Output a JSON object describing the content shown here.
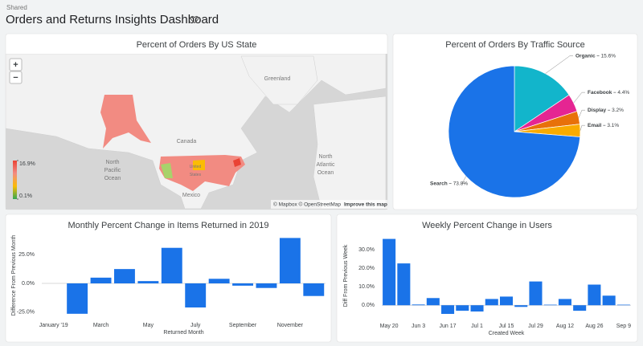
{
  "header": {
    "label": "Shared",
    "title": "Orders and Returns Insights Dashboard"
  },
  "chart_data": [
    {
      "type": "map",
      "title": "Percent of Orders By US State",
      "controls": [
        "+",
        "−"
      ],
      "map_labels": [
        "Greenland",
        "Canada",
        "North Pacific Ocean",
        "North Atlantic Ocean",
        "Mexico",
        "United States"
      ],
      "colorbar_ticks": [
        {
          "value": 16.9,
          "label": "16.9%"
        },
        {
          "value": 0.1,
          "label": "0.1%"
        }
      ],
      "colors": [
        "#34a853",
        "#fbbc04",
        "#f28b82",
        "#ea4335"
      ],
      "attribution": [
        "© Mapbox © OpenStreetMap",
        "Improve this map"
      ]
    },
    {
      "type": "pie",
      "title": "Percent of Orders By Traffic Source",
      "categories": [
        "Organic",
        "Facebook",
        "Display",
        "Email",
        "Search"
      ],
      "values": [
        15.6,
        4.4,
        3.2,
        3.1,
        73.8
      ],
      "value_labels": [
        "15.6%",
        "4.4%",
        "3.2%",
        "3.1%",
        "73.8%"
      ],
      "colors": [
        "#12b5cb",
        "#e52592",
        "#e8710a",
        "#f9ab00",
        "#1a73e8"
      ]
    },
    {
      "type": "bar",
      "title": "Monthly Percent Change in Items Returned in 2019",
      "x_label": "Returned Month",
      "y_label": "Difference From Previous Month",
      "categories": [
        "January '19",
        null,
        "March",
        null,
        "May",
        null,
        "July",
        null,
        "September",
        null,
        "November",
        null
      ],
      "values": [
        null,
        -26.5,
        5,
        12.5,
        2,
        31,
        -21,
        4,
        -2,
        -4,
        39.6,
        -11
      ],
      "color": "#1a73e8",
      "ylim": [
        -28,
        42
      ],
      "yticks": [
        {
          "value": -25,
          "label": "-25.0%"
        },
        {
          "value": 0,
          "label": "0.0%"
        },
        {
          "value": 25,
          "label": "25.0%"
        }
      ]
    },
    {
      "type": "bar",
      "title": "Weekly Percent Change in Users",
      "x_label": "Created Week",
      "y_label": "Diff From Previous Week",
      "categories": [
        "May 20",
        null,
        "Jun 3",
        null,
        "Jun 17",
        null,
        "Jul 1",
        null,
        "Jul 15",
        null,
        "Jul 29",
        null,
        "Aug 12",
        null,
        "Aug 26",
        null,
        "Sep 9"
      ],
      "values": [
        36,
        22.7,
        0.4,
        3.9,
        -4.7,
        -3,
        -3.4,
        3.4,
        4.7,
        -0.9,
        12.9,
        0.3,
        3.4,
        -3,
        11.2,
        5.2,
        0.3
      ],
      "color": "#1a73e8",
      "ylim": [
        -6,
        38
      ],
      "yticks": [
        {
          "value": 0,
          "label": "0.0%"
        },
        {
          "value": 10,
          "label": "10.0%"
        },
        {
          "value": 20,
          "label": "20.0%"
        },
        {
          "value": 30,
          "label": "30.0%"
        }
      ]
    }
  ]
}
